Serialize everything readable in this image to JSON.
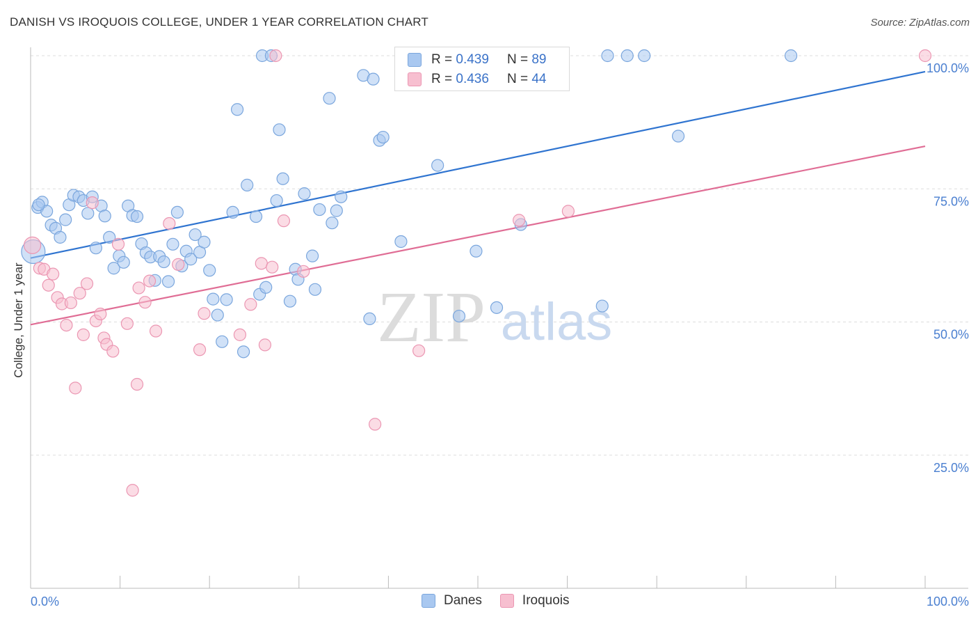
{
  "title": "DANISH VS IROQUOIS COLLEGE, UNDER 1 YEAR CORRELATION CHART",
  "source": "Source: ZipAtlas.com",
  "watermark": {
    "zip": "ZIP",
    "atlas": "atlas"
  },
  "legend_top": {
    "rows": [
      {
        "r_label": "R =",
        "r_value": "0.439",
        "n_label": "N =",
        "n_value": "89"
      },
      {
        "r_label": "R =",
        "r_value": "0.436",
        "n_label": "N =",
        "n_value": "44"
      }
    ]
  },
  "legend_bottom": {
    "danes": "Danes",
    "iroquois": "Iroquois"
  },
  "colors": {
    "danes_fill": "#a9c8f0",
    "danes_stroke": "#7aa6dd",
    "danes_line": "#2f74d0",
    "iroquois_fill": "#f7bfd0",
    "iroquois_stroke": "#eb96b2",
    "iroquois_line": "#e06d95",
    "tick_label": "#4a7fd0",
    "grid": "#dddddd"
  },
  "chart_data": {
    "type": "scatter",
    "title": "DANISH VS IROQUOIS COLLEGE, UNDER 1 YEAR CORRELATION CHART",
    "xlabel": "",
    "ylabel": "College, Under 1 year",
    "xlim": [
      0,
      100
    ],
    "ylim": [
      0,
      100
    ],
    "x_tick_labels": [
      "0.0%",
      "100.0%"
    ],
    "y_ticks": [
      25,
      50,
      75,
      100
    ],
    "y_tick_labels": [
      "25.0%",
      "50.0%",
      "75.0%",
      "100.0%"
    ],
    "grid": true,
    "legend_position": "top-center",
    "series": [
      {
        "name": "Danes",
        "r": 0.439,
        "n": 89,
        "trend": {
          "x": [
            0,
            100
          ],
          "y": [
            62.0,
            97.0
          ]
        },
        "points": [
          [
            0.3,
            63.2
          ],
          [
            0.8,
            71.5
          ],
          [
            1.3,
            72.5
          ],
          [
            1.8,
            70.8
          ],
          [
            2.3,
            68.2
          ],
          [
            2.8,
            67.6
          ],
          [
            3.3,
            65.9
          ],
          [
            3.9,
            69.2
          ],
          [
            4.3,
            72.0
          ],
          [
            4.8,
            73.8
          ],
          [
            5.4,
            73.5
          ],
          [
            5.9,
            72.8
          ],
          [
            6.4,
            70.4
          ],
          [
            6.9,
            73.5
          ],
          [
            7.3,
            63.9
          ],
          [
            7.9,
            71.8
          ],
          [
            8.3,
            69.9
          ],
          [
            8.8,
            65.9
          ],
          [
            9.3,
            60.1
          ],
          [
            9.9,
            62.4
          ],
          [
            10.4,
            61.2
          ],
          [
            10.9,
            71.8
          ],
          [
            11.4,
            70.0
          ],
          [
            11.9,
            69.8
          ],
          [
            12.4,
            64.7
          ],
          [
            12.9,
            63.0
          ],
          [
            13.4,
            62.2
          ],
          [
            13.9,
            57.8
          ],
          [
            14.4,
            62.3
          ],
          [
            14.9,
            61.3
          ],
          [
            15.4,
            57.6
          ],
          [
            15.9,
            64.6
          ],
          [
            16.4,
            70.6
          ],
          [
            16.9,
            60.5
          ],
          [
            17.4,
            63.3
          ],
          [
            17.9,
            61.8
          ],
          [
            18.4,
            66.4
          ],
          [
            18.9,
            63.1
          ],
          [
            19.4,
            65.0
          ],
          [
            20.0,
            59.7
          ],
          [
            20.4,
            54.3
          ],
          [
            20.9,
            51.3
          ],
          [
            21.4,
            46.3
          ],
          [
            21.9,
            54.2
          ],
          [
            22.6,
            70.6
          ],
          [
            23.1,
            89.9
          ],
          [
            23.8,
            44.4
          ],
          [
            24.2,
            75.7
          ],
          [
            25.2,
            69.8
          ],
          [
            25.6,
            55.2
          ],
          [
            25.9,
            100.0
          ],
          [
            26.3,
            56.5
          ],
          [
            26.9,
            100.0
          ],
          [
            27.5,
            72.8
          ],
          [
            27.8,
            86.1
          ],
          [
            28.2,
            76.9
          ],
          [
            29.0,
            53.9
          ],
          [
            29.6,
            59.9
          ],
          [
            29.9,
            58.0
          ],
          [
            30.6,
            74.1
          ],
          [
            31.5,
            62.4
          ],
          [
            31.8,
            56.1
          ],
          [
            32.3,
            71.1
          ],
          [
            33.4,
            92.0
          ],
          [
            33.7,
            68.6
          ],
          [
            34.2,
            70.9
          ],
          [
            34.7,
            73.5
          ],
          [
            37.2,
            96.3
          ],
          [
            37.9,
            50.6
          ],
          [
            38.3,
            95.6
          ],
          [
            39.0,
            84.1
          ],
          [
            39.4,
            84.7
          ],
          [
            41.4,
            65.1
          ],
          [
            42.4,
            100.0
          ],
          [
            45.5,
            79.4
          ],
          [
            47.9,
            51.1
          ],
          [
            49.0,
            100.0
          ],
          [
            49.8,
            63.3
          ],
          [
            52.1,
            52.7
          ],
          [
            53.8,
            100.0
          ],
          [
            54.8,
            68.3
          ],
          [
            58.7,
            100.0
          ],
          [
            63.9,
            53.0
          ],
          [
            64.5,
            100.0
          ],
          [
            66.7,
            100.0
          ],
          [
            68.6,
            100.0
          ],
          [
            72.4,
            84.9
          ],
          [
            85.0,
            100.0
          ],
          [
            0.9,
            72.0
          ]
        ]
      },
      {
        "name": "Iroquois",
        "r": 0.436,
        "n": 44,
        "trend": {
          "x": [
            0,
            100
          ],
          "y": [
            49.5,
            83.0
          ]
        },
        "points": [
          [
            0.2,
            64.4
          ],
          [
            1.0,
            60.1
          ],
          [
            1.5,
            59.9
          ],
          [
            2.0,
            56.9
          ],
          [
            2.5,
            59.0
          ],
          [
            3.0,
            54.6
          ],
          [
            3.5,
            53.4
          ],
          [
            4.0,
            49.4
          ],
          [
            4.5,
            53.6
          ],
          [
            5.0,
            37.6
          ],
          [
            5.5,
            55.4
          ],
          [
            5.9,
            47.6
          ],
          [
            6.3,
            57.2
          ],
          [
            6.9,
            72.4
          ],
          [
            7.3,
            50.2
          ],
          [
            7.8,
            51.5
          ],
          [
            8.2,
            47.0
          ],
          [
            8.5,
            45.8
          ],
          [
            9.2,
            44.5
          ],
          [
            9.8,
            64.6
          ],
          [
            10.8,
            49.7
          ],
          [
            11.4,
            18.4
          ],
          [
            11.9,
            38.3
          ],
          [
            12.1,
            56.4
          ],
          [
            12.8,
            53.7
          ],
          [
            13.3,
            57.7
          ],
          [
            14.0,
            48.3
          ],
          [
            15.5,
            68.5
          ],
          [
            16.5,
            60.8
          ],
          [
            18.9,
            44.8
          ],
          [
            19.4,
            51.6
          ],
          [
            23.4,
            47.6
          ],
          [
            24.6,
            53.3
          ],
          [
            25.8,
            61.0
          ],
          [
            26.2,
            45.7
          ],
          [
            27.0,
            60.3
          ],
          [
            27.4,
            100.0
          ],
          [
            28.3,
            69.0
          ],
          [
            30.5,
            59.5
          ],
          [
            38.5,
            30.8
          ],
          [
            43.4,
            44.6
          ],
          [
            54.6,
            69.1
          ],
          [
            60.1,
            70.8
          ],
          [
            100.0,
            100.0
          ]
        ]
      }
    ]
  }
}
